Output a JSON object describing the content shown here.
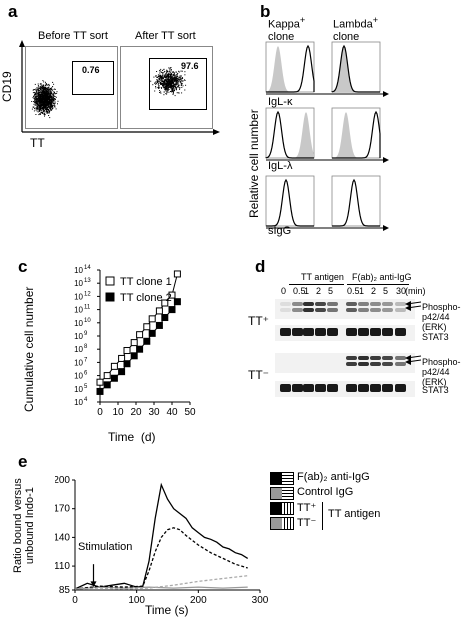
{
  "figure": {
    "panel_labels": [
      "a",
      "b",
      "c",
      "d",
      "e"
    ]
  },
  "panel_a": {
    "titles": [
      "Before TT sort",
      "After TT sort"
    ],
    "gate_values": [
      "0.76",
      "97.6"
    ],
    "ylabel": "CD19",
    "xlabel": "TT"
  },
  "panel_b": {
    "col_titles": [
      "Kappa+ clone",
      "Lambda+ clone"
    ],
    "kappa_title": "Kappa",
    "lambda_title": "Lambda",
    "clone_word": "clone",
    "sup": "+",
    "row_labels": [
      "IgL-κ",
      "IgL-λ",
      "sIgG"
    ],
    "ylabel": "Relative cell number"
  },
  "panel_c": {
    "ylabel": "Cumulative cell number",
    "xlabel": "Time  (d)",
    "legend": [
      "TT clone 1",
      "TT clone 2"
    ],
    "xticks": [
      "0",
      "10",
      "20",
      "30",
      "40",
      "50"
    ],
    "yticks": [
      {
        "base": "10",
        "exp": "14"
      },
      {
        "base": "10",
        "exp": "13"
      },
      {
        "base": "10",
        "exp": "12"
      },
      {
        "base": "10",
        "exp": "11"
      },
      {
        "base": "10",
        "exp": "10"
      },
      {
        "base": "10",
        "exp": "9"
      },
      {
        "base": "10",
        "exp": "8"
      },
      {
        "base": "10",
        "exp": "7"
      },
      {
        "base": "10",
        "exp": "6"
      },
      {
        "base": "10",
        "exp": "5"
      },
      {
        "base": "10",
        "exp": "4"
      }
    ]
  },
  "panel_d": {
    "group_labels": [
      "TT antigen",
      "F(ab)₂ anti-IgG"
    ],
    "lanes": [
      "0",
      "0.5",
      "1",
      "2",
      "5",
      "0.5",
      "1",
      "2",
      "5",
      "30"
    ],
    "unit": "(min)",
    "row_labels": [
      "TT⁺",
      "TT⁻"
    ],
    "band_labels": [
      "Phospho-",
      "p42/44 (ERK)",
      "STAT3"
    ]
  },
  "panel_e": {
    "ylabel": "Ratio bound versus unbound Indo-1",
    "ylabel_line1": "Ratio bound versus",
    "ylabel_line2": "unbound Indo-1",
    "xlabel": "Time (s)",
    "annotation": "Stimulation",
    "legend": [
      "F(ab)₂ anti-IgG",
      "Control IgG",
      "TT⁺",
      "TT⁻"
    ],
    "legend_group": "TT antigen",
    "xticks": [
      "0",
      "100",
      "200",
      "300"
    ],
    "yticks": [
      "200",
      "170",
      "140",
      "110",
      "85"
    ]
  },
  "chart_data": [
    {
      "type": "scatter",
      "xlabel": "Time  (d)",
      "ylabel": "Cumulative cell number",
      "xlim": [
        0,
        50
      ],
      "ylim_log10": [
        4,
        14
      ],
      "yscale": "log",
      "series": [
        {
          "name": "TT clone 1",
          "marker": "open-square",
          "x": [
            0,
            4,
            8,
            12,
            15,
            19,
            22,
            26,
            29,
            33,
            36,
            40,
            43
          ],
          "log10_y": [
            5.5,
            6.0,
            6.7,
            7.3,
            7.9,
            8.5,
            9.1,
            9.7,
            10.3,
            10.9,
            11.5,
            12.1,
            13.7
          ]
        },
        {
          "name": "TT clone 2",
          "marker": "filled-square",
          "x": [
            0,
            4,
            8,
            12,
            15,
            19,
            22,
            26,
            29,
            33,
            36,
            40,
            43
          ],
          "log10_y": [
            4.8,
            5.3,
            5.8,
            6.3,
            6.9,
            7.5,
            8.0,
            8.6,
            9.2,
            9.8,
            10.4,
            11.0,
            11.6
          ]
        }
      ]
    },
    {
      "type": "line",
      "xlabel": "Time (s)",
      "ylabel": "Ratio bound versus unbound Indo-1",
      "xlim": [
        0,
        300
      ],
      "ylim": [
        85,
        200
      ],
      "series": [
        {
          "name": "F(ab)₂ anti-IgG",
          "style": "solid-black",
          "x": [
            0,
            20,
            40,
            60,
            80,
            100,
            110,
            120,
            130,
            140,
            150,
            160,
            170,
            180,
            190,
            200,
            210,
            220,
            230,
            240,
            250,
            260,
            270,
            280
          ],
          "y": [
            86,
            92,
            88,
            90,
            92,
            88,
            89,
            115,
            160,
            195,
            180,
            170,
            165,
            160,
            150,
            145,
            140,
            138,
            135,
            130,
            128,
            124,
            122,
            118
          ]
        },
        {
          "name": "Control IgG",
          "style": "solid-gray",
          "x": [
            0,
            40,
            80,
            120,
            160,
            200,
            240,
            280
          ],
          "y": [
            86,
            88,
            87,
            88,
            87,
            88,
            87,
            88
          ]
        },
        {
          "name": "TT⁺",
          "style": "dashed-black",
          "x": [
            0,
            40,
            80,
            110,
            120,
            130,
            140,
            150,
            160,
            170,
            180,
            200,
            220,
            240,
            260,
            280
          ],
          "y": [
            86,
            89,
            88,
            89,
            105,
            125,
            140,
            148,
            150,
            148,
            142,
            132,
            124,
            118,
            112,
            108
          ]
        },
        {
          "name": "TT⁻",
          "style": "dashed-gray",
          "x": [
            0,
            40,
            80,
            120,
            160,
            200,
            240,
            280
          ],
          "y": [
            86,
            87,
            86,
            87,
            90,
            94,
            97,
            100
          ]
        }
      ]
    }
  ]
}
